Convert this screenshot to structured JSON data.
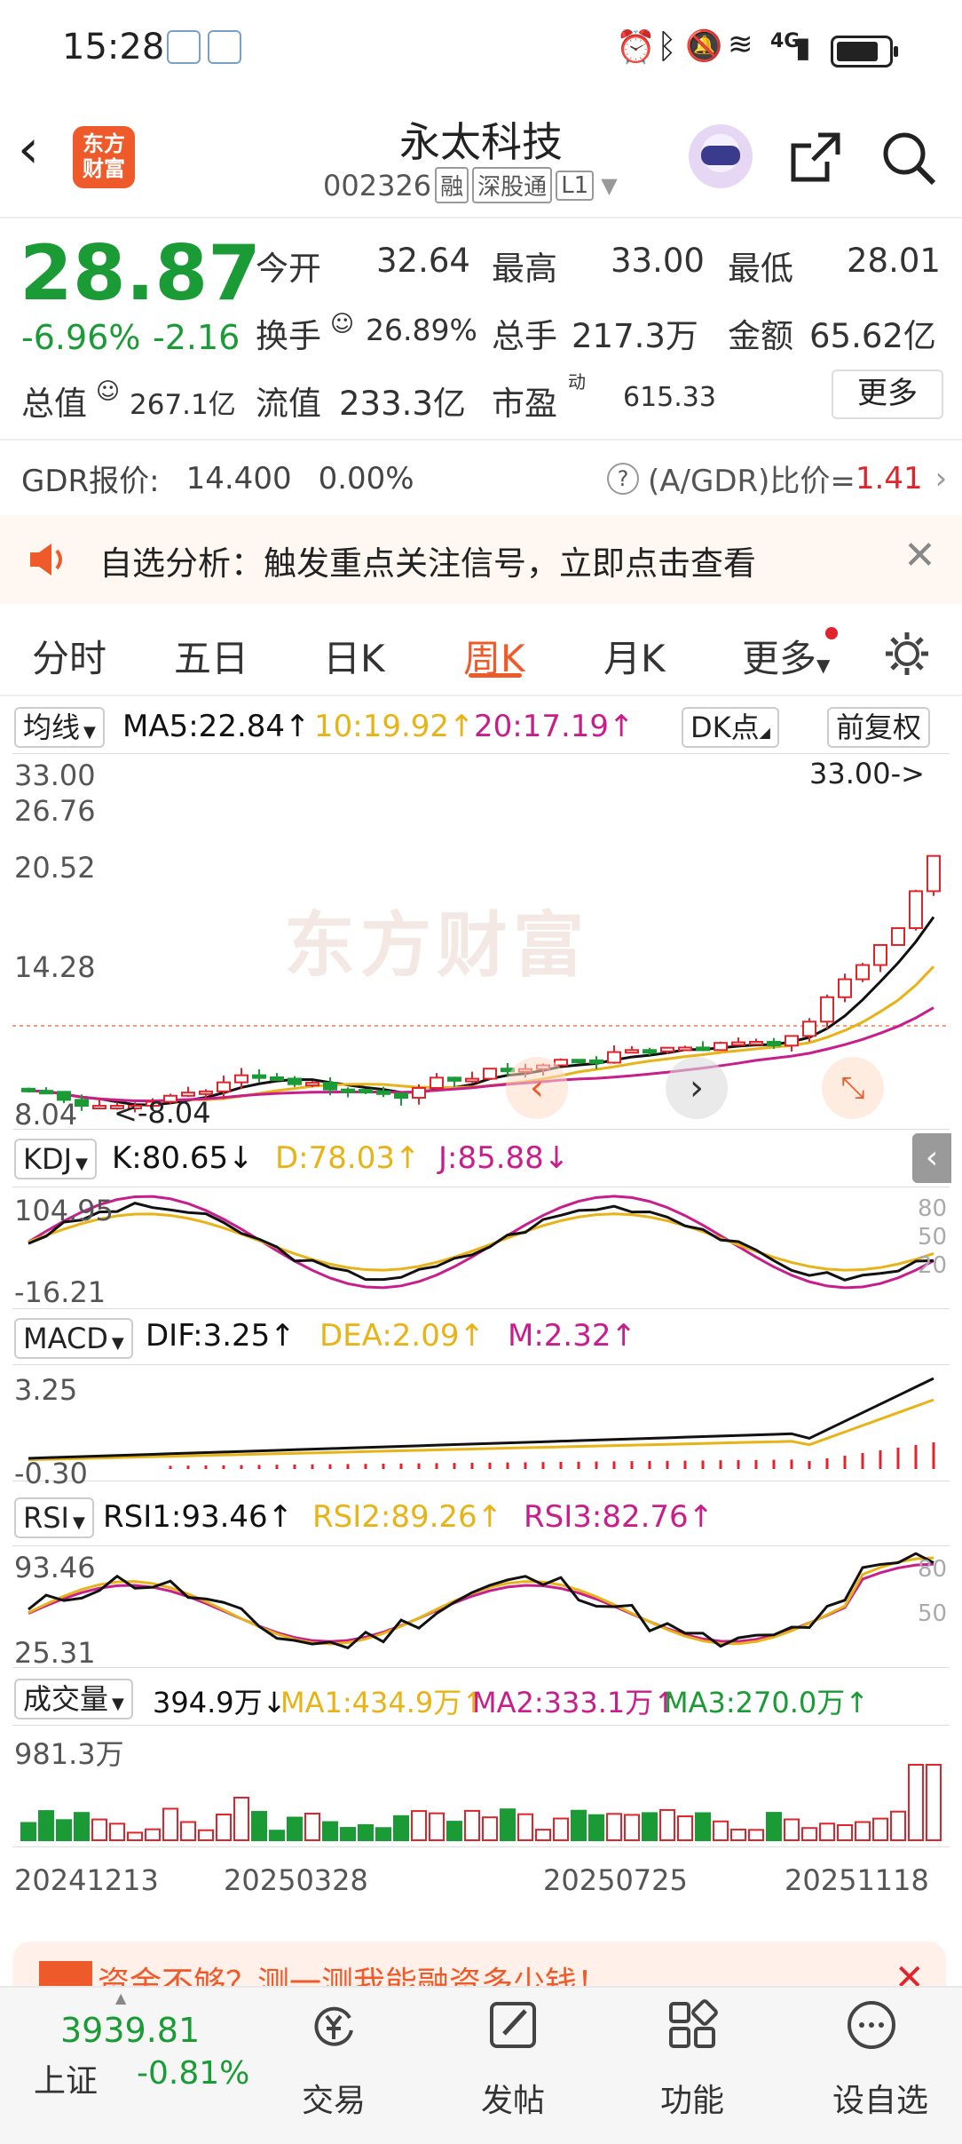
{
  "status_bar": {
    "time": "15:28",
    "network": "4G"
  },
  "header": {
    "logo_text_1": "东方",
    "logo_text_2": "财富",
    "stock_name": "永太科技",
    "stock_code": "002326",
    "tags": [
      "融",
      "深股通",
      "L1"
    ]
  },
  "quote": {
    "price": "28.87",
    "change_pct": "-6.96%",
    "change_val": "-2.16",
    "open_label": "今开",
    "open": "32.64",
    "high_label": "最高",
    "high": "33.00",
    "low_label": "最低",
    "low": "28.01",
    "turnover_label": "换手",
    "turnover": "26.89%",
    "volume_label": "总手",
    "volume": "217.3万",
    "amount_label": "金额",
    "amount": "65.62亿",
    "mktcap_label": "总值",
    "mktcap": "267.1亿",
    "float_label": "流值",
    "float_cap": "233.3亿",
    "pe_label": "市盈",
    "pe_sup": "动",
    "pe": "615.33",
    "more_label": "更多"
  },
  "gdr": {
    "label": "GDR报价:",
    "price": "14.400",
    "pct": "0.00%",
    "ratio_label": "(A/GDR)比价=",
    "ratio": "1.41"
  },
  "banner": {
    "text": "自选分析：触发重点关注信号，立即点击查看"
  },
  "tabs": [
    "分时",
    "五日",
    "日K",
    "周K",
    "月K",
    "更多"
  ],
  "active_tab": "周K",
  "kline": {
    "ma_select": "均线",
    "ma5": "MA5:22.84↑",
    "ma10": "10:19.92↑",
    "ma20": "20:17.19↑",
    "dk_label": "DK点",
    "adj_label": "前复权",
    "y_labels": [
      "33.00",
      "26.76",
      "20.52",
      "14.28",
      "8.04"
    ],
    "high_marker": "33.00->",
    "low_marker": "<-8.04",
    "watermark": "东方财富"
  },
  "kdj": {
    "select": "KDJ",
    "k": "K:80.65↓",
    "d": "D:78.03↑",
    "j": "J:85.88↓",
    "y_top": "104.95",
    "y_bottom": "-16.21",
    "levels": [
      "80",
      "50",
      "20"
    ]
  },
  "macd": {
    "select": "MACD",
    "dif": "DIF:3.25↑",
    "dea": "DEA:2.09↑",
    "m": "M:2.32↑",
    "y_top": "3.25",
    "y_bottom": "-0.30"
  },
  "rsi": {
    "select": "RSI",
    "rsi1": "RSI1:93.46↑",
    "rsi2": "RSI2:89.26↑",
    "rsi3": "RSI3:82.76↑",
    "y_top": "93.46",
    "y_bottom": "25.31",
    "levels": [
      "80",
      "50"
    ]
  },
  "volume": {
    "select": "成交量",
    "value": "394.9万↓",
    "ma1": "MA1:434.9万↑",
    "ma2": "MA2:333.1万↑",
    "ma3": "MA3:270.0万↑",
    "y_top": "981.3万",
    "dates": [
      "20241213",
      "20250328",
      "20250725",
      "20251118"
    ]
  },
  "promo": {
    "text": "资金不够？测一测我能融资多少钱！"
  },
  "bottom": {
    "index_value": "3939.81",
    "index_name": "上证",
    "index_pct": "-0.81%",
    "nav": [
      "交易",
      "发帖",
      "功能",
      "设自选"
    ]
  },
  "colors": {
    "up": "#e0242b",
    "down": "#1a9b36",
    "accent": "#ef5a2a",
    "ma5": "#111111",
    "ma10": "#e8b316",
    "ma20": "#c81e8c"
  }
}
